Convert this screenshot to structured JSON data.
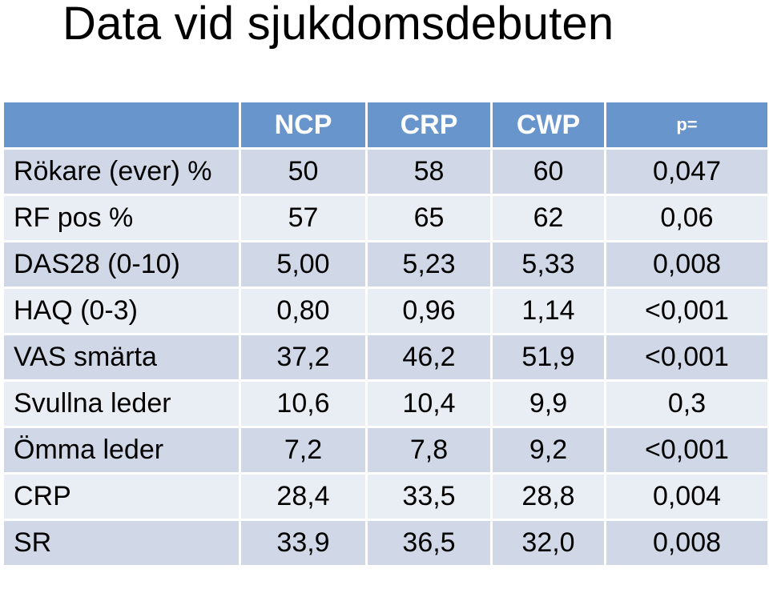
{
  "title": "Data vid sjukdomsdebuten",
  "table": {
    "headers": [
      "",
      "NCP",
      "CRP",
      "CWP",
      "p="
    ],
    "rows": [
      [
        "Rökare (ever) %",
        "50",
        "58",
        "60",
        "0,047"
      ],
      [
        "RF pos %",
        "57",
        "65",
        "62",
        "0,06"
      ],
      [
        "DAS28 (0-10)",
        "5,00",
        "5,23",
        "5,33",
        "0,008"
      ],
      [
        "HAQ (0-3)",
        "0,80",
        "0,96",
        "1,14",
        "<0,001"
      ],
      [
        "VAS smärta",
        "37,2",
        "46,2",
        "51,9",
        "<0,001"
      ],
      [
        "Svullna leder",
        "10,6",
        "10,4",
        "9,9",
        "0,3"
      ],
      [
        "Ömma leder",
        "7,2",
        "7,8",
        "9,2",
        "<0,001"
      ],
      [
        "CRP",
        "28,4",
        "33,5",
        "28,8",
        "0,004"
      ],
      [
        "SR",
        "33,9",
        "36,5",
        "32,0",
        "0,008"
      ]
    ]
  },
  "colors": {
    "header_bg": "#6896cc",
    "row_band_dark": "#d0d8e8",
    "row_band_light": "#e9edf4"
  }
}
